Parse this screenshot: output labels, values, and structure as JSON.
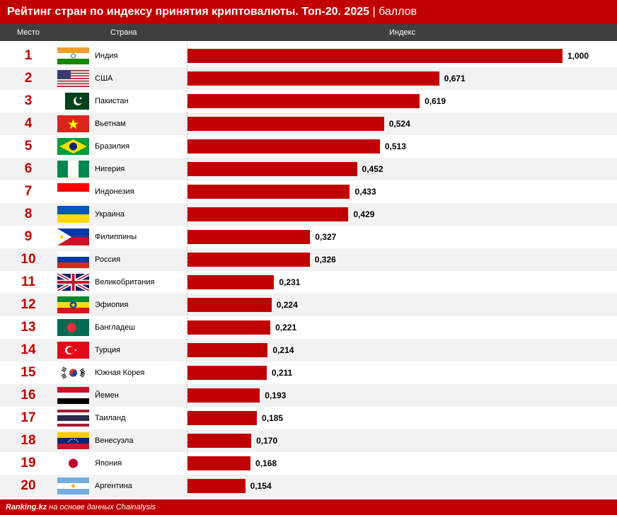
{
  "header": {
    "title": "Рейтинг стран по индексу принятия криптовалюты. Топ-20. 2025",
    "unit": "| баллов",
    "col_rank": "Место",
    "col_country": "Страна",
    "col_index": "Индекс"
  },
  "footer": {
    "brand": "Ranking.kz",
    "source": "на основе данных Chainalysis"
  },
  "colors": {
    "accent": "#c00000",
    "header_bg": "#3f3f3f"
  },
  "chart_data": {
    "type": "bar",
    "title": "Рейтинг стран по индексу принятия криптовалюты. Топ-20. 2025",
    "ylabel": "Индекс",
    "xlim": [
      0,
      1
    ],
    "rows": [
      {
        "rank": "1",
        "country": "Индия",
        "value": 1.0,
        "label": "1,000",
        "flag": "india-flag"
      },
      {
        "rank": "2",
        "country": "США",
        "value": 0.671,
        "label": "0,671",
        "flag": "usa-flag"
      },
      {
        "rank": "3",
        "country": "Пакистан",
        "value": 0.619,
        "label": "0,619",
        "flag": "pakistan-flag"
      },
      {
        "rank": "4",
        "country": "Вьетнам",
        "value": 0.524,
        "label": "0,524",
        "flag": "vietnam-flag"
      },
      {
        "rank": "5",
        "country": "Бразилия",
        "value": 0.513,
        "label": "0,513",
        "flag": "brazil-flag"
      },
      {
        "rank": "6",
        "country": "Нигерия",
        "value": 0.452,
        "label": "0,452",
        "flag": "nigeria-flag"
      },
      {
        "rank": "7",
        "country": "Индонезия",
        "value": 0.433,
        "label": "0,433",
        "flag": "indonesia-flag"
      },
      {
        "rank": "8",
        "country": "Украина",
        "value": 0.429,
        "label": "0,429",
        "flag": "ukraine-flag"
      },
      {
        "rank": "9",
        "country": "Филиппины",
        "value": 0.327,
        "label": "0,327",
        "flag": "philippines-flag"
      },
      {
        "rank": "10",
        "country": "Россия",
        "value": 0.326,
        "label": "0,326",
        "flag": "russia-flag"
      },
      {
        "rank": "11",
        "country": "Великобритания",
        "value": 0.231,
        "label": "0,231",
        "flag": "uk-flag"
      },
      {
        "rank": "12",
        "country": "Эфиопия",
        "value": 0.224,
        "label": "0,224",
        "flag": "ethiopia-flag"
      },
      {
        "rank": "13",
        "country": "Бангладеш",
        "value": 0.221,
        "label": "0,221",
        "flag": "bangladesh-flag"
      },
      {
        "rank": "14",
        "country": "Турция",
        "value": 0.214,
        "label": "0,214",
        "flag": "turkey-flag"
      },
      {
        "rank": "15",
        "country": "Южная Корея",
        "value": 0.211,
        "label": "0,211",
        "flag": "south-korea-flag"
      },
      {
        "rank": "16",
        "country": "Йемен",
        "value": 0.193,
        "label": "0,193",
        "flag": "yemen-flag"
      },
      {
        "rank": "17",
        "country": "Таиланд",
        "value": 0.185,
        "label": "0,185",
        "flag": "thailand-flag"
      },
      {
        "rank": "18",
        "country": "Венесуэла",
        "value": 0.17,
        "label": "0,170",
        "flag": "venezuela-flag"
      },
      {
        "rank": "19",
        "country": "Япония",
        "value": 0.168,
        "label": "0,168",
        "flag": "japan-flag"
      },
      {
        "rank": "20",
        "country": "Аргентина",
        "value": 0.154,
        "label": "0,154",
        "flag": "argentina-flag"
      }
    ]
  }
}
